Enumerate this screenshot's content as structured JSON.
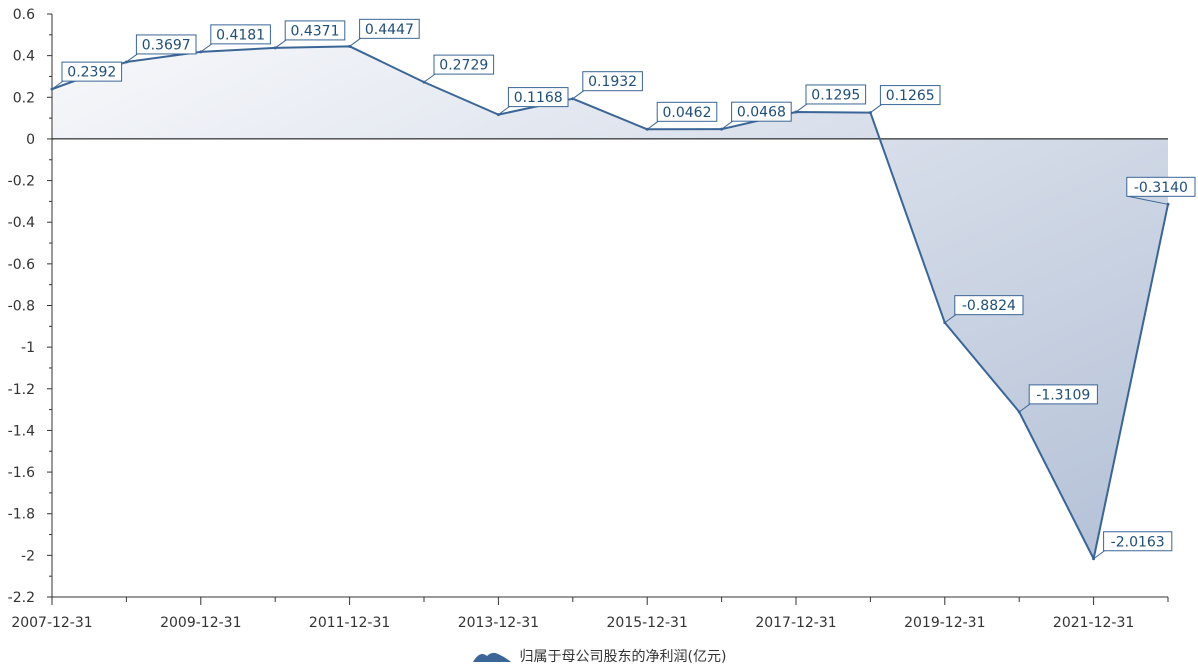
{
  "chart_data": {
    "type": "area",
    "x": [
      "2007-12-31",
      "2008-12-31",
      "2009-12-31",
      "2010-12-31",
      "2011-12-31",
      "2012-12-31",
      "2013-12-31",
      "2014-12-31",
      "2015-12-31",
      "2016-12-31",
      "2017-12-31",
      "2018-12-31",
      "2019-12-31",
      "2020-12-31",
      "2021-12-31",
      "2022-12-31"
    ],
    "x_tick_labels": [
      "2007-12-31",
      "2009-12-31",
      "2011-12-31",
      "2013-12-31",
      "2015-12-31",
      "2017-12-31",
      "2019-12-31",
      "2021-12-31"
    ],
    "series": [
      {
        "name": "归属于母公司股东的净利润(亿元)",
        "values": [
          0.2392,
          0.3697,
          0.4181,
          0.4371,
          0.4447,
          0.2729,
          0.1168,
          0.1932,
          0.0462,
          0.0468,
          0.1295,
          0.1265,
          -0.8824,
          -1.3109,
          -2.0163,
          -0.314
        ],
        "labels": [
          "0.2392",
          "0.3697",
          "0.4181",
          "0.4371",
          "0.4447",
          "0.2729",
          "0.1168",
          "0.1932",
          "0.0462",
          "0.0468",
          "0.1295",
          "0.1265",
          "-0.8824",
          "-1.3109",
          "-2.0163",
          "-0.3140"
        ]
      }
    ],
    "ylim": [
      -2.2,
      0.6
    ],
    "y_ticks": [
      0.6,
      0.4,
      0.2,
      0,
      -0.2,
      -0.4,
      -0.6,
      -0.8,
      -1,
      -1.2,
      -1.4,
      -1.6,
      -1.8,
      -2,
      -2.2
    ],
    "y_tick_labels": [
      "0.6",
      "0.4",
      "0.2",
      "0",
      "-0.2",
      "-0.4",
      "-0.6",
      "-0.8",
      "-1",
      "-1.2",
      "-1.4",
      "-1.6",
      "-1.8",
      "-2",
      "-2.2"
    ],
    "grid": false,
    "legend_position": "bottom-center",
    "colors": {
      "line": "#3a6596",
      "fill_top": "#f7f8fb",
      "fill_bottom": "#b3c0d6",
      "axis": "#333333",
      "label_text": "#1f4e79"
    }
  },
  "legend": {
    "label": "归属于母公司股东的净利润(亿元)",
    "icon": "mountain-area-icon"
  }
}
